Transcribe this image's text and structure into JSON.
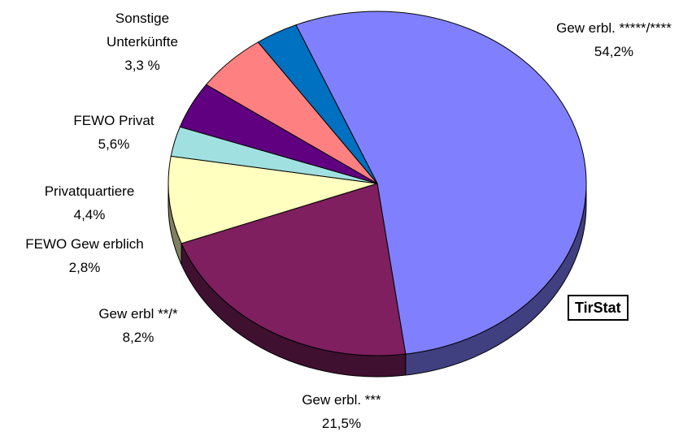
{
  "chart_data": {
    "type": "pie",
    "slices": [
      {
        "label_lines": [
          "Gew erbl. *****/****"
        ],
        "value_text": "54,2%",
        "value": 54.2,
        "color": "#8080ff"
      },
      {
        "label_lines": [
          "Gew erbl. ***"
        ],
        "value_text": "21,5%",
        "value": 21.5,
        "color": "#7f1f5f"
      },
      {
        "label_lines": [
          "Gew erbl **/*"
        ],
        "value_text": "8,2%",
        "value": 8.2,
        "color": "#ffffc0"
      },
      {
        "label_lines": [
          "FEWO Gew erblich"
        ],
        "value_text": "2,8%",
        "value": 2.8,
        "color": "#a0e0e0"
      },
      {
        "label_lines": [
          "Privatquartiere"
        ],
        "value_text": "4,4%",
        "value": 4.4,
        "color": "#600080"
      },
      {
        "label_lines": [
          "FEWO Privat"
        ],
        "value_text": "5,6%",
        "value": 5.6,
        "color": "#ff8080"
      },
      {
        "label_lines": [
          "Sonstige",
          "Unterkünfte"
        ],
        "value_text": "3,3 %",
        "value": 3.3,
        "color": "#0070c0"
      }
    ]
  },
  "watermark": "TirStat"
}
